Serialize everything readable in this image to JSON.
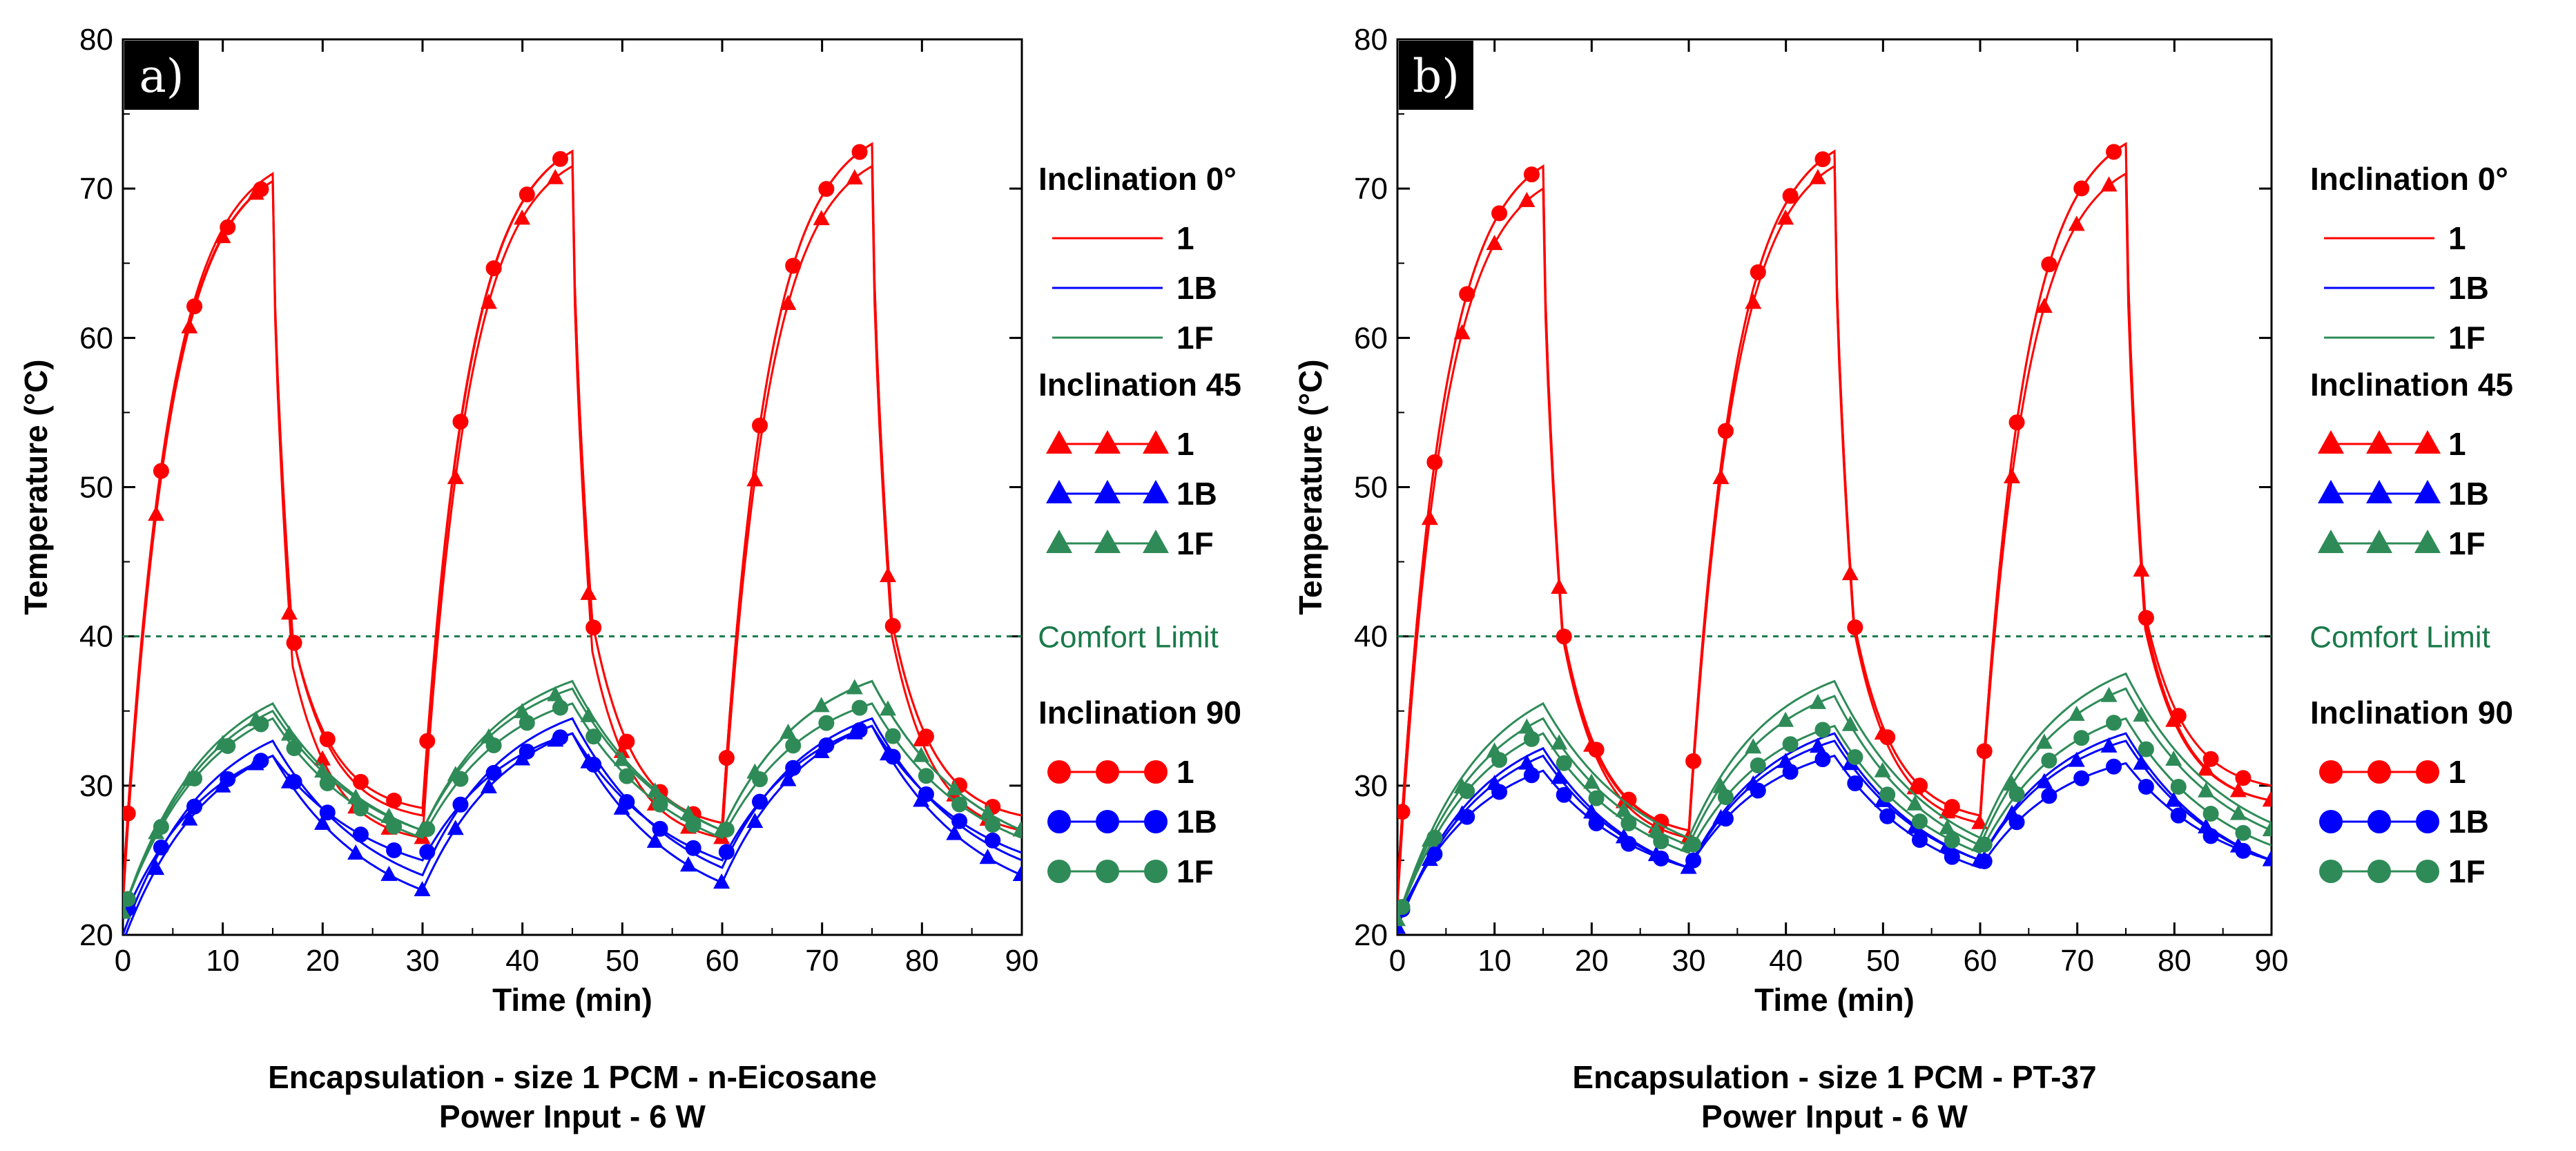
{
  "chart_data": [
    {
      "type": "line",
      "panel_label": "a)",
      "xlabel": "Time (min)",
      "ylabel": "Temperature (°C)",
      "xlim": [
        0,
        90
      ],
      "ylim": [
        20,
        80
      ],
      "xticks": [
        0,
        10,
        20,
        30,
        40,
        50,
        60,
        70,
        80,
        90
      ],
      "yticks": [
        20,
        30,
        40,
        50,
        60,
        70,
        80
      ],
      "caption_line1": "Encapsulation - size 1    PCM - n-Eicosane",
      "caption_line2": "Power Input - 6 W",
      "comfort_limit": {
        "label": "Comfort Limit",
        "value": 40
      },
      "series": [
        {
          "name": "1",
          "inclination": "0",
          "color": "#ff0000",
          "marker": "none",
          "params": {
            "base": 23,
            "peak": [
              71,
              72.5,
              73
            ],
            "drop": [
              40,
              41,
              41
            ],
            "trough": [
              28,
              27.5,
              28
            ],
            "end": 28
          }
        },
        {
          "name": "1",
          "inclination": "45",
          "color": "#ff0000",
          "marker": "triangle",
          "params": {
            "base": 22,
            "peak": [
              70.5,
              71.5,
              71.5
            ],
            "drop": [
              38,
              39,
              40
            ],
            "trough": [
              26.5,
              26.5,
              27
            ],
            "end": 27
          }
        },
        {
          "name": "1",
          "inclination": "90",
          "color": "#ff0000",
          "marker": "circle",
          "params": {
            "base": 23,
            "peak": [
              70.5,
              72.5,
              73
            ],
            "drop": [
              40,
              41,
              41
            ],
            "trough": [
              28.5,
              27.5,
              28
            ],
            "end": 28
          }
        },
        {
          "name": "1B",
          "inclination": "0",
          "color": "#0000ff",
          "marker": "none",
          "params": {
            "base": 20,
            "peak": [
              33,
              34.5,
              34.5
            ],
            "trough": [
              24,
              24.5,
              24
            ],
            "end": 25
          }
        },
        {
          "name": "1B",
          "inclination": "45",
          "color": "#0000ff",
          "marker": "triangle",
          "params": {
            "base": 19.5,
            "peak": [
              32,
              33.5,
              34
            ],
            "trough": [
              23,
              23.5,
              23.5
            ],
            "end": 24
          }
        },
        {
          "name": "1B",
          "inclination": "90",
          "color": "#0000ff",
          "marker": "circle",
          "params": {
            "base": 21,
            "peak": [
              32,
              33.5,
              34
            ],
            "trough": [
              25,
              25,
              25
            ],
            "end": 25.5
          }
        },
        {
          "name": "1F",
          "inclination": "0",
          "color": "#2e8b57",
          "marker": "none",
          "params": {
            "base": 21.5,
            "peak": [
              35.5,
              37,
              37
            ],
            "trough": [
              27,
              27,
              27
            ],
            "end": 27
          }
        },
        {
          "name": "1F",
          "inclination": "45",
          "color": "#2e8b57",
          "marker": "triangle",
          "params": {
            "base": 21.5,
            "peak": [
              35,
              36.5,
              37
            ],
            "trough": [
              27,
              27,
              27
            ],
            "end": 27
          }
        },
        {
          "name": "1F",
          "inclination": "90",
          "color": "#2e8b57",
          "marker": "circle",
          "params": {
            "base": 21.5,
            "peak": [
              34.5,
              35.5,
              35.5
            ],
            "trough": [
              26.5,
              26.5,
              26.5
            ],
            "end": 26.5
          }
        }
      ]
    },
    {
      "type": "line",
      "panel_label": "b)",
      "xlabel": "Time (min)",
      "ylabel": "Temperature (°C)",
      "xlim": [
        0,
        90
      ],
      "ylim": [
        20,
        80
      ],
      "xticks": [
        0,
        10,
        20,
        30,
        40,
        50,
        60,
        70,
        80,
        90
      ],
      "yticks": [
        20,
        30,
        40,
        50,
        60,
        70,
        80
      ],
      "caption_line1": "Encapsulation - size 1    PCM - PT-37",
      "caption_line2": "Power Input - 6 W",
      "comfort_limit": {
        "label": "Comfort Limit",
        "value": 40
      },
      "series": [
        {
          "name": "1",
          "inclination": "0",
          "color": "#ff0000",
          "marker": "none",
          "params": {
            "base": 23,
            "peak": [
              71.5,
              72.5,
              73
            ],
            "drop": [
              40,
              41,
              41
            ],
            "trough": [
              27,
              28,
              29
            ],
            "end": 29
          }
        },
        {
          "name": "1",
          "inclination": "45",
          "color": "#ff0000",
          "marker": "triangle",
          "params": {
            "base": 22,
            "peak": [
              70,
              71.5,
              71
            ],
            "drop": [
              40,
              40.5,
              40.5
            ],
            "trough": [
              26.5,
              27.5,
              28.5
            ],
            "end": 29
          }
        },
        {
          "name": "1",
          "inclination": "90",
          "color": "#ff0000",
          "marker": "circle",
          "params": {
            "base": 23,
            "peak": [
              71.5,
              72.5,
              73
            ],
            "drop": [
              40.5,
              41,
              41.5
            ],
            "trough": [
              27,
              28,
              29
            ],
            "end": 30
          }
        },
        {
          "name": "1B",
          "inclination": "0",
          "color": "#0000ff",
          "marker": "none",
          "params": {
            "base": 20.5,
            "peak": [
              32.5,
              33.5,
              33.5
            ],
            "trough": [
              24.5,
              25,
              25
            ],
            "end": 25
          }
        },
        {
          "name": "1B",
          "inclination": "45",
          "color": "#0000ff",
          "marker": "triangle",
          "params": {
            "base": 20.5,
            "peak": [
              32,
              33,
              33
            ],
            "trough": [
              24.5,
              25,
              25
            ],
            "end": 25
          }
        },
        {
          "name": "1B",
          "inclination": "90",
          "color": "#0000ff",
          "marker": "circle",
          "params": {
            "base": 21,
            "peak": [
              31,
              32,
              31.5
            ],
            "trough": [
              24.5,
              24.5,
              24.5
            ],
            "end": 25
          }
        },
        {
          "name": "1F",
          "inclination": "0",
          "color": "#2e8b57",
          "marker": "none",
          "params": {
            "base": 21,
            "peak": [
              35.5,
              37,
              37.5
            ],
            "trough": [
              26.5,
              26.5,
              27
            ],
            "end": 27.5
          }
        },
        {
          "name": "1F",
          "inclination": "45",
          "color": "#2e8b57",
          "marker": "triangle",
          "params": {
            "base": 21,
            "peak": [
              34.5,
              36,
              36.5
            ],
            "trough": [
              26,
              26,
              26.5
            ],
            "end": 27
          }
        },
        {
          "name": "1F",
          "inclination": "90",
          "color": "#2e8b57",
          "marker": "circle",
          "params": {
            "base": 21,
            "peak": [
              33.5,
              34,
              34.5
            ],
            "trough": [
              25.5,
              25.5,
              26
            ],
            "end": 26
          }
        }
      ]
    }
  ],
  "legend": {
    "groups": [
      {
        "title": "Inclination 0°",
        "marker": "none",
        "entries": [
          {
            "label": "1",
            "color": "#ff0000"
          },
          {
            "label": "1B",
            "color": "#0000ff"
          },
          {
            "label": "1F",
            "color": "#2e8b57"
          }
        ]
      },
      {
        "title": "Inclination 45",
        "marker": "triangle",
        "entries": [
          {
            "label": "1",
            "color": "#ff0000"
          },
          {
            "label": "1B",
            "color": "#0000ff"
          },
          {
            "label": "1F",
            "color": "#2e8b57"
          }
        ]
      },
      {
        "title": "Inclination 90",
        "marker": "circle",
        "entries": [
          {
            "label": "1",
            "color": "#ff0000"
          },
          {
            "label": "1B",
            "color": "#0000ff"
          },
          {
            "label": "1F",
            "color": "#2e8b57"
          }
        ]
      }
    ]
  },
  "colors": {
    "comfort_line": "#1a7a4a",
    "panel_label_bg": "#000000"
  }
}
